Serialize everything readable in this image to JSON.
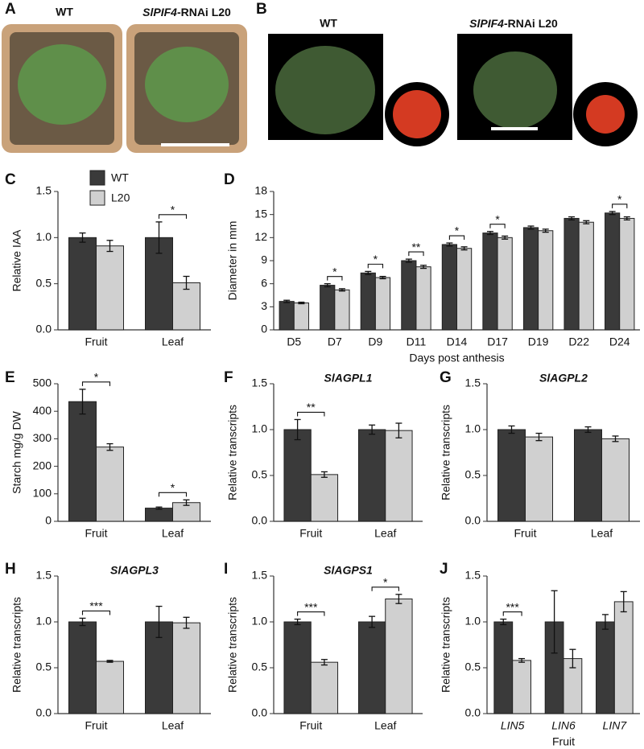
{
  "panel_a": {
    "label": "A",
    "left_title": "WT",
    "right_title_italic": "SlPIF4",
    "right_title_rest": "-RNAi L20"
  },
  "panel_b": {
    "label": "B",
    "left_title": "WT",
    "right_title_italic": "SlPIF4",
    "right_title_rest": "-RNAi L20"
  },
  "chart_data": [
    {
      "type": "bar",
      "panel": "C",
      "ylabel": "Relative IAA",
      "categories": [
        "Fruit",
        "Leaf"
      ],
      "series": [
        {
          "name": "WT",
          "color": "#3a3a3a",
          "values": [
            1.0,
            1.0
          ],
          "errors": [
            0.05,
            0.17
          ]
        },
        {
          "name": "L20",
          "color": "#d0d0d0",
          "values": [
            0.91,
            0.51
          ],
          "errors": [
            0.06,
            0.07
          ]
        }
      ],
      "significance": [
        null,
        "*"
      ],
      "legend": "upper left",
      "ylim": [
        0,
        1.5
      ],
      "yticks": [
        {
          "value": 0,
          "label": "0.0"
        },
        0.5,
        {
          "value": 1,
          "label": "1.0"
        },
        1.5
      ]
    },
    {
      "type": "bar",
      "panel": "D",
      "ylabel": "Diameter in mm",
      "xlabel": "Days post anthesis",
      "categories": [
        "D5",
        "D7",
        "D9",
        "D11",
        "D14",
        "D17",
        "D19",
        "D22",
        "D24"
      ],
      "series": [
        {
          "color": "#3a3a3a",
          "values": [
            3.7,
            5.8,
            7.4,
            9.0,
            11.1,
            12.6,
            13.3,
            14.5,
            15.2
          ],
          "errors": [
            0.15,
            0.2,
            0.2,
            0.2,
            0.2,
            0.2,
            0.2,
            0.2,
            0.2
          ]
        },
        {
          "color": "#d0d0d0",
          "values": [
            3.5,
            5.2,
            6.8,
            8.2,
            10.6,
            12.0,
            12.9,
            14.0,
            14.5
          ],
          "errors": [
            0.1,
            0.15,
            0.15,
            0.2,
            0.2,
            0.2,
            0.2,
            0.2,
            0.2
          ]
        }
      ],
      "significance": [
        null,
        "*",
        "*",
        "**",
        "*",
        "*",
        null,
        null,
        "*"
      ],
      "ylim": [
        0,
        18
      ],
      "yticks": [
        0,
        3,
        6,
        9,
        12,
        15,
        18
      ]
    },
    {
      "type": "bar",
      "panel": "E",
      "ylabel": "Starch mg/g DW",
      "categories": [
        "Fruit",
        "Leaf"
      ],
      "series": [
        {
          "color": "#3a3a3a",
          "values": [
            435,
            48
          ],
          "errors": [
            45,
            4
          ]
        },
        {
          "color": "#d0d0d0",
          "values": [
            270,
            68
          ],
          "errors": [
            12,
            10
          ]
        }
      ],
      "significance": [
        "*",
        "*"
      ],
      "ylim": [
        0,
        500
      ],
      "yticks": [
        0,
        100,
        200,
        300,
        400,
        500
      ]
    },
    {
      "type": "bar",
      "panel": "F",
      "title": "SlAGPL1",
      "ylabel": "Relative transcripts",
      "categories": [
        "Fruit",
        "Leaf"
      ],
      "series": [
        {
          "color": "#3a3a3a",
          "values": [
            1.0,
            1.0
          ],
          "errors": [
            0.11,
            0.05
          ]
        },
        {
          "color": "#d0d0d0",
          "values": [
            0.51,
            0.99
          ],
          "errors": [
            0.03,
            0.08
          ]
        }
      ],
      "significance": [
        "**",
        null
      ],
      "ylim": [
        0,
        1.5
      ],
      "yticks": [
        {
          "value": 0,
          "label": "0.0"
        },
        0.5,
        {
          "value": 1,
          "label": "1.0"
        },
        1.5
      ]
    },
    {
      "type": "bar",
      "panel": "G",
      "title": "SlAGPL2",
      "ylabel": "Relative transcripts",
      "categories": [
        "Fruit",
        "Leaf"
      ],
      "series": [
        {
          "color": "#3a3a3a",
          "values": [
            1.0,
            1.0
          ],
          "errors": [
            0.04,
            0.03
          ]
        },
        {
          "color": "#d0d0d0",
          "values": [
            0.92,
            0.9
          ],
          "errors": [
            0.04,
            0.03
          ]
        }
      ],
      "significance": [
        null,
        null
      ],
      "ylim": [
        0,
        1.5
      ],
      "yticks": [
        {
          "value": 0,
          "label": "0.0"
        },
        0.5,
        {
          "value": 1,
          "label": "1.0"
        },
        1.5
      ]
    },
    {
      "type": "bar",
      "panel": "H",
      "title": "SlAGPL3",
      "ylabel": "Relative transcripts",
      "categories": [
        "Fruit",
        "Leaf"
      ],
      "series": [
        {
          "color": "#3a3a3a",
          "values": [
            1.0,
            1.0
          ],
          "errors": [
            0.04,
            0.17
          ]
        },
        {
          "color": "#d0d0d0",
          "values": [
            0.57,
            0.99
          ],
          "errors": [
            0.01,
            0.06
          ]
        }
      ],
      "significance": [
        "***",
        null
      ],
      "ylim": [
        0,
        1.5
      ],
      "yticks": [
        {
          "value": 0,
          "label": "0.0"
        },
        0.5,
        {
          "value": 1,
          "label": "1.0"
        },
        1.5
      ]
    },
    {
      "type": "bar",
      "panel": "I",
      "title": "SlAGPS1",
      "ylabel": "Relative transcripts",
      "categories": [
        "Fruit",
        "Leaf"
      ],
      "series": [
        {
          "color": "#3a3a3a",
          "values": [
            1.0,
            1.0
          ],
          "errors": [
            0.03,
            0.06
          ]
        },
        {
          "color": "#d0d0d0",
          "values": [
            0.56,
            1.25
          ],
          "errors": [
            0.03,
            0.05
          ]
        }
      ],
      "significance": [
        "***",
        "*"
      ],
      "ylim": [
        0,
        1.5
      ],
      "yticks": [
        {
          "value": 0,
          "label": "0.0"
        },
        0.5,
        {
          "value": 1,
          "label": "1.0"
        },
        1.5
      ]
    },
    {
      "type": "bar",
      "panel": "J",
      "ylabel": "Relative transcripts",
      "xlabel": "Fruit",
      "italic_categories": true,
      "categories": [
        "LIN5",
        "LIN6",
        "LIN7"
      ],
      "series": [
        {
          "color": "#3a3a3a",
          "values": [
            1.0,
            1.0,
            1.0
          ],
          "errors": [
            0.03,
            0.34,
            0.08
          ]
        },
        {
          "color": "#d0d0d0",
          "values": [
            0.58,
            0.6,
            1.22
          ],
          "errors": [
            0.02,
            0.1,
            0.11
          ]
        }
      ],
      "significance": [
        "***",
        null,
        null
      ],
      "ylim": [
        0,
        1.5
      ],
      "yticks": [
        {
          "value": 0,
          "label": "0.0"
        },
        0.5,
        {
          "value": 1,
          "label": "1.0"
        },
        1.5
      ]
    }
  ]
}
